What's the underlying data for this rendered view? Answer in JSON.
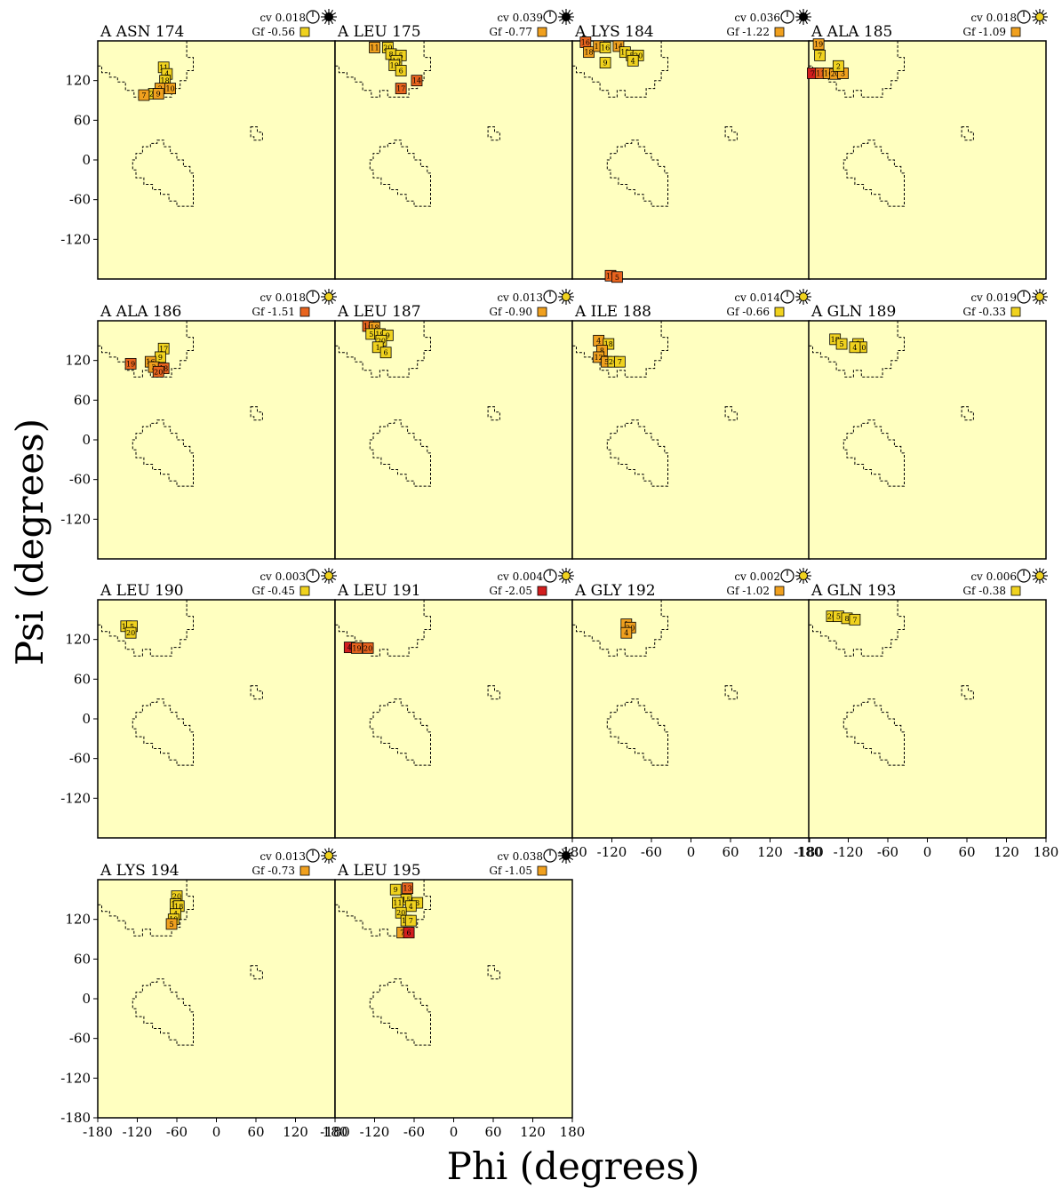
{
  "figure": {
    "xlabel": "Phi (degrees)",
    "ylabel": "Psi (degrees)"
  },
  "axes": {
    "range": [
      -180,
      180
    ],
    "x_ticks": [
      "-180",
      "-120",
      "-60",
      "0",
      "60",
      "120",
      "180"
    ],
    "y_ticks": [
      "-180",
      "-120",
      "-60",
      "0",
      "60",
      "120"
    ]
  },
  "colors": {
    "panel_background": "#ffffc0",
    "yellow": "#f0d21e",
    "orange": "#f0a01e",
    "dark_orange": "#e8641e",
    "red": "#d21e1e",
    "region_outline": "#000000"
  },
  "chart_data": {
    "type": "scatter",
    "panels": [
      {
        "title": "A ASN 174",
        "cv": "cv 0.018",
        "gf": "Gf -0.56",
        "gf_color": "yellow",
        "icon": "black-sun-icon",
        "points": [
          [
            -80,
            140,
            "11",
            "yellow"
          ],
          [
            -75,
            130,
            "4",
            "yellow"
          ],
          [
            -78,
            120,
            "18",
            "yellow"
          ],
          [
            -85,
            108,
            "2",
            "orange"
          ],
          [
            -70,
            108,
            "10",
            "orange"
          ],
          [
            -95,
            100,
            "20",
            "yellow"
          ],
          [
            -88,
            100,
            "9",
            "orange"
          ],
          [
            -110,
            98,
            "7",
            "orange"
          ]
        ]
      },
      {
        "title": "A LEU 175",
        "cv": "cv 0.039",
        "gf": "Gf -0.77",
        "gf_color": "orange",
        "icon": "black-sun-icon",
        "points": [
          [
            -120,
            170,
            "11",
            "orange"
          ],
          [
            -100,
            170,
            "20",
            "yellow"
          ],
          [
            -95,
            160,
            "8",
            "yellow"
          ],
          [
            -80,
            158,
            "5",
            "yellow"
          ],
          [
            -87,
            150,
            "13",
            "yellow"
          ],
          [
            -90,
            143,
            "19",
            "yellow"
          ],
          [
            -80,
            135,
            "6",
            "yellow"
          ],
          [
            -56,
            120,
            "14",
            "dark_orange"
          ],
          [
            -80,
            108,
            "17",
            "dark_orange"
          ]
        ]
      },
      {
        "title": "A LYS 184",
        "cv": "cv 0.036",
        "gf": "Gf -1.22",
        "gf_color": "orange",
        "icon": "black-sun-icon",
        "points": [
          [
            -160,
            178,
            "16",
            "dark_orange"
          ],
          [
            -155,
            163,
            "18",
            "orange"
          ],
          [
            -140,
            172,
            "11",
            "orange"
          ],
          [
            -130,
            170,
            "16",
            "yellow"
          ],
          [
            -110,
            172,
            "14",
            "orange"
          ],
          [
            -100,
            163,
            "11",
            "yellow"
          ],
          [
            -90,
            158,
            "5",
            "yellow"
          ],
          [
            -80,
            158,
            "20",
            "yellow"
          ],
          [
            -130,
            147,
            "9",
            "yellow"
          ],
          [
            -88,
            150,
            "4",
            "yellow"
          ],
          [
            -122,
            -175,
            "17",
            "dark_orange"
          ],
          [
            -112,
            -177,
            "5",
            "dark_orange"
          ]
        ]
      },
      {
        "title": "A ALA 185",
        "cv": "cv 0.018",
        "gf": "Gf -1.09",
        "gf_color": "orange",
        "icon": "yellow-sun-icon",
        "points": [
          [
            -165,
            175,
            "19",
            "orange"
          ],
          [
            -163,
            158,
            "7",
            "yellow"
          ],
          [
            -174,
            131,
            "7",
            "red"
          ],
          [
            -162,
            131,
            "11",
            "dark_orange"
          ],
          [
            -150,
            131,
            "10",
            "orange"
          ],
          [
            -140,
            130,
            "20",
            "orange"
          ],
          [
            -128,
            131,
            "3",
            "orange"
          ],
          [
            -135,
            142,
            "2",
            "yellow"
          ]
        ]
      },
      {
        "title": "A ALA 186",
        "cv": "cv 0.018",
        "gf": "Gf -1.51",
        "gf_color": "dark_orange",
        "icon": "yellow-sun-icon",
        "points": [
          [
            -130,
            115,
            "19",
            "dark_orange"
          ],
          [
            -80,
            138,
            "17",
            "yellow"
          ],
          [
            -85,
            125,
            "9",
            "yellow"
          ],
          [
            -100,
            118,
            "16",
            "orange"
          ],
          [
            -95,
            110,
            "3",
            "orange"
          ],
          [
            -80,
            108,
            "18",
            "dark_orange"
          ],
          [
            -88,
            103,
            "20",
            "dark_orange"
          ]
        ]
      },
      {
        "title": "A LEU 187",
        "cv": "cv 0.013",
        "gf": "Gf -0.90",
        "gf_color": "orange",
        "icon": "yellow-sun-icon",
        "points": [
          [
            -130,
            172,
            "16",
            "dark_orange"
          ],
          [
            -120,
            170,
            "18",
            "orange"
          ],
          [
            -125,
            160,
            "5",
            "yellow"
          ],
          [
            -112,
            160,
            "19",
            "yellow"
          ],
          [
            -100,
            158,
            "9",
            "yellow"
          ],
          [
            -110,
            150,
            "20",
            "yellow"
          ],
          [
            -115,
            140,
            "1",
            "yellow"
          ],
          [
            -103,
            132,
            "6",
            "yellow"
          ]
        ]
      },
      {
        "title": "A ILE 188",
        "cv": "cv 0.014",
        "gf": "Gf -0.66",
        "gf_color": "yellow",
        "icon": "yellow-sun-icon",
        "points": [
          [
            -140,
            150,
            "4",
            "orange"
          ],
          [
            -125,
            145,
            "18",
            "yellow"
          ],
          [
            -135,
            135,
            "8",
            "orange"
          ],
          [
            -140,
            125,
            "12",
            "orange"
          ],
          [
            -128,
            118,
            "5",
            "orange"
          ],
          [
            -118,
            118,
            "20",
            "yellow"
          ],
          [
            -108,
            118,
            "7",
            "yellow"
          ]
        ]
      },
      {
        "title": "A GLN 189",
        "cv": "cv 0.019",
        "gf": "Gf -0.33",
        "gf_color": "yellow",
        "icon": "yellow-sun-icon",
        "points": [
          [
            -140,
            152,
            "18",
            "yellow"
          ],
          [
            -130,
            145,
            "5",
            "yellow"
          ],
          [
            -105,
            145,
            "1",
            "yellow"
          ],
          [
            -100,
            140,
            "20",
            "yellow"
          ],
          [
            -110,
            140,
            "4",
            "yellow"
          ]
        ]
      },
      {
        "title": "A LEU 190",
        "cv": "cv 0.003",
        "gf": "Gf -0.45",
        "gf_color": "yellow",
        "icon": "yellow-sun-icon",
        "points": [
          [
            -137,
            140,
            "19",
            "yellow"
          ],
          [
            -128,
            140,
            "5",
            "yellow"
          ],
          [
            -130,
            130,
            "20",
            "yellow"
          ]
        ]
      },
      {
        "title": "A LEU 191",
        "cv": "cv 0.004",
        "gf": "Gf -2.05",
        "gf_color": "red",
        "icon": "yellow-sun-icon",
        "points": [
          [
            -158,
            108,
            "4",
            "red"
          ],
          [
            -147,
            107,
            "19",
            "dark_orange"
          ],
          [
            -130,
            107,
            "20",
            "dark_orange"
          ]
        ]
      },
      {
        "title": "A GLY 192",
        "cv": "cv 0.002",
        "gf": "Gf -1.02",
        "gf_color": "orange",
        "icon": "yellow-sun-icon",
        "points": [
          [
            -98,
            143,
            "1",
            "orange"
          ],
          [
            -92,
            138,
            "20",
            "orange"
          ],
          [
            -98,
            130,
            "4",
            "orange"
          ]
        ]
      },
      {
        "title": "A GLN 193",
        "cv": "cv 0.006",
        "gf": "Gf -0.38",
        "gf_color": "yellow",
        "icon": "yellow-sun-icon",
        "points": [
          [
            -145,
            155,
            "20",
            "yellow"
          ],
          [
            -135,
            155,
            "5",
            "yellow"
          ],
          [
            -122,
            152,
            "8",
            "yellow"
          ],
          [
            -110,
            150,
            "7",
            "yellow"
          ]
        ]
      },
      {
        "title": "A LYS 194",
        "cv": "cv 0.013",
        "gf": "Gf -0.73",
        "gf_color": "orange",
        "icon": "yellow-sun-icon",
        "points": [
          [
            -60,
            155,
            "20",
            "yellow"
          ],
          [
            -62,
            143,
            "15",
            "yellow"
          ],
          [
            -57,
            140,
            "18",
            "yellow"
          ],
          [
            -62,
            128,
            "4",
            "yellow"
          ],
          [
            -65,
            120,
            "19",
            "yellow"
          ],
          [
            -68,
            113,
            "5",
            "orange"
          ]
        ]
      },
      {
        "title": "A LEU 195",
        "cv": "cv 0.038",
        "gf": "Gf -1.05",
        "gf_color": "orange",
        "icon": "black-sun-icon",
        "points": [
          [
            -88,
            165,
            "9",
            "yellow"
          ],
          [
            -70,
            167,
            "13",
            "dark_orange"
          ],
          [
            -72,
            150,
            "15",
            "yellow"
          ],
          [
            -85,
            145,
            "11",
            "yellow"
          ],
          [
            -55,
            145,
            "3",
            "yellow"
          ],
          [
            -65,
            140,
            "4",
            "yellow"
          ],
          [
            -80,
            130,
            "20",
            "yellow"
          ],
          [
            -72,
            118,
            "18",
            "yellow"
          ],
          [
            -65,
            118,
            "7",
            "yellow"
          ],
          [
            -78,
            100,
            "7",
            "orange"
          ],
          [
            -68,
            100,
            "6",
            "red"
          ]
        ]
      }
    ]
  }
}
